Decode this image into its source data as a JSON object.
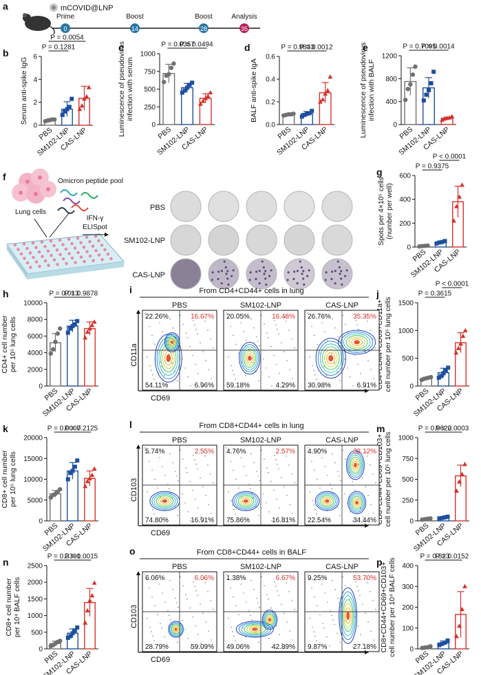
{
  "figure": {
    "colors": {
      "pbs": "#707070",
      "sm102": "#1d4ea0",
      "cas": "#d6302a",
      "axis": "#111111"
    },
    "panel_a": {
      "label": "a",
      "formulation": "mCOVID@LNP",
      "steps": [
        {
          "name": "Prime",
          "day": "0"
        },
        {
          "name": "Boost",
          "day": "14"
        },
        {
          "name": "Boost",
          "day": "28"
        },
        {
          "name": "Analysis",
          "day": "35"
        }
      ]
    },
    "panel_f": {
      "label": "f",
      "cells_label": "Lung cells",
      "pool_label": "Omicron peptide pool",
      "assay_line1": "IFN-γ",
      "assay_line2": "ELISpot",
      "rows": [
        "PBS",
        "SM102-LNP",
        "CAS-LNP"
      ]
    },
    "flow_i": {
      "label": "i",
      "title": "From CD4+CD44+ cells in lung",
      "groups": [
        "PBS",
        "SM102-LNP",
        "CAS-LNP"
      ],
      "quadrants": [
        [
          "22.26%",
          "16.67%",
          "54.11%",
          "6.96%"
        ],
        [
          "20.05%",
          "16.48%",
          "59.18%",
          "4.29%"
        ],
        [
          "26.76%",
          "35.35%",
          "30.98%",
          "6.91%"
        ]
      ],
      "ylabel": "CD11a",
      "xlabel": "CD69"
    },
    "flow_l": {
      "label": "l",
      "title": "From CD8+CD44+ cells in lung",
      "groups": [
        "PBS",
        "SM102-LNP",
        "CAS-LNP"
      ],
      "quadrants": [
        [
          "5.74%",
          "2.55%",
          "74.80%",
          "16.91%"
        ],
        [
          "4.76%",
          "2.57%",
          "75.86%",
          "16.81%"
        ],
        [
          "4.90%",
          "38.12%",
          "22.54%",
          "34.44%"
        ]
      ],
      "ylabel": "CD103",
      "xlabel": "CD69"
    },
    "flow_o": {
      "label": "o",
      "title": "From CD8+CD44+ cells in BALF",
      "groups": [
        "PBS",
        "SM102-LNP",
        "CAS-LNP"
      ],
      "quadrants": [
        [
          "6.06%",
          "6.06%",
          "28.79%",
          "59.09%"
        ],
        [
          "1.38%",
          "6.67%",
          "49.06%",
          "42.89%"
        ],
        [
          "9.25%",
          "53.70%",
          "9.87%",
          "27.18%"
        ]
      ],
      "ylabel": "CD103",
      "xlabel": "CD69"
    }
  },
  "chart_data": [
    {
      "panel": "b",
      "type": "bar",
      "ylabel": "Serum anti-spike IgG",
      "categories": [
        "PBS",
        "SM102-LNP",
        "CAS-LNP"
      ],
      "ylim": [
        0,
        6
      ],
      "ticks": [
        "0",
        "2",
        "4",
        "6"
      ],
      "values": [
        0.45,
        1.4,
        2.35
      ],
      "errors": [
        0.1,
        0.65,
        1.05
      ],
      "points": [
        [
          0.35,
          0.4,
          0.45,
          0.5,
          0.5
        ],
        [
          0.9,
          1.2,
          1.4,
          1.6,
          2.3
        ],
        [
          1.4,
          1.7,
          2.3,
          2.5,
          3.3
        ]
      ],
      "pvalues": [
        {
          "text": "P = 0.1281",
          "from": 0,
          "to": 1,
          "level": 0
        },
        {
          "text": "P = 0.0054",
          "from": 0,
          "to": 2,
          "level": 1
        }
      ]
    },
    {
      "panel": "c",
      "type": "bar",
      "ylabel": [
        "Luminescence of pseudovirus",
        "infection with serum"
      ],
      "categories": [
        "PBS",
        "SM102-LNP",
        "CAS-LNP"
      ],
      "ylim": [
        0,
        1000
      ],
      "ticks": [
        "0",
        "250",
        "500",
        "750",
        "1000"
      ],
      "values": [
        720,
        520,
        370
      ],
      "errors": [
        130,
        60,
        65
      ],
      "points": [
        [
          600,
          690,
          710,
          800,
          860
        ],
        [
          450,
          480,
          520,
          560,
          590
        ],
        [
          290,
          330,
          370,
          400,
          450
        ]
      ],
      "pvalues": [
        {
          "text": "P = 0.0357",
          "from": 0,
          "to": 1,
          "level": 0
        },
        {
          "text": "P = 0.0494",
          "from": 1,
          "to": 2,
          "level": 0
        }
      ]
    },
    {
      "panel": "d",
      "type": "bar",
      "ylabel": "BALF anti-spike IgA",
      "categories": [
        "PBS",
        "SM102-LNP",
        "CAS-LNP"
      ],
      "ylim": [
        0,
        0.6
      ],
      "ticks": [
        "0.0",
        "0.2",
        "0.4",
        "0.6"
      ],
      "values": [
        0.088,
        0.095,
        0.28
      ],
      "errors": [
        0.008,
        0.02,
        0.09
      ],
      "points": [
        [
          0.08,
          0.085,
          0.09,
          0.09,
          0.095
        ],
        [
          0.07,
          0.085,
          0.095,
          0.1,
          0.12
        ],
        [
          0.2,
          0.22,
          0.27,
          0.3,
          0.42
        ]
      ],
      "pvalues": [
        {
          "text": "P = 0.9833",
          "from": 0,
          "to": 1,
          "level": 0
        },
        {
          "text": "P = 0.0012",
          "from": 1,
          "to": 2,
          "level": 0
        }
      ]
    },
    {
      "panel": "e",
      "type": "bar",
      "ylabel": [
        "Luminescence of pseudovirus",
        "infection with BALF"
      ],
      "categories": [
        "PBS",
        "SM102-LNP",
        "CAS-LNP"
      ],
      "ylim": [
        0,
        1200
      ],
      "ticks": [
        "0",
        "400",
        "800",
        "1200"
      ],
      "values": [
        750,
        640,
        110
      ],
      "errors": [
        240,
        180,
        20
      ],
      "points": [
        [
          430,
          620,
          700,
          870,
          1010
        ],
        [
          420,
          520,
          600,
          720,
          920
        ],
        [
          80,
          100,
          110,
          120,
          140
        ]
      ],
      "pvalues": [
        {
          "text": "P = 0.7095",
          "from": 0,
          "to": 1,
          "level": 0
        },
        {
          "text": "P = 0.0014",
          "from": 1,
          "to": 2,
          "level": 0
        }
      ]
    },
    {
      "panel": "g",
      "type": "bar",
      "ylabel": [
        "Spots per 4×10⁵ cells",
        "(number per well)"
      ],
      "categories": [
        "PBS",
        "SM102-LNP",
        "CAS-LNP"
      ],
      "ylim": [
        0,
        600
      ],
      "ticks": [
        "0",
        "200",
        "400",
        "600"
      ],
      "values": [
        10,
        40,
        380
      ],
      "errors": [
        5,
        10,
        130
      ],
      "points": [
        [
          5,
          8,
          10,
          12
        ],
        [
          30,
          38,
          42,
          50
        ],
        [
          220,
          340,
          420,
          520
        ]
      ],
      "pvalues": [
        {
          "text": "P = 0.9375",
          "from": 0,
          "to": 1,
          "level": 0
        },
        {
          "text": "P < 0.0001",
          "from": 1,
          "to": 2,
          "level": 1
        }
      ]
    },
    {
      "panel": "h",
      "type": "bar",
      "ylabel": [
        "CD4+ cell number",
        "per 10⁵ lung cells"
      ],
      "categories": [
        "PBS",
        "SM102-LNP",
        "CAS-LNP"
      ],
      "ylim": [
        0,
        10000
      ],
      "ticks": [
        "0",
        "2000",
        "4000",
        "6000",
        "8000",
        "10000"
      ],
      "values": [
        5200,
        7200,
        6900
      ],
      "errors": [
        1100,
        700,
        800
      ],
      "points": [
        [
          3900,
          4400,
          5300,
          6300,
          6900
        ],
        [
          6400,
          6900,
          7200,
          7400,
          7800
        ],
        [
          5800,
          6500,
          6900,
          7300,
          7700
        ]
      ],
      "pvalues": [
        {
          "text": "P = 0.013",
          "from": 0,
          "to": 1,
          "level": 0
        },
        {
          "text": "P = 0.9878",
          "from": 1,
          "to": 2,
          "level": 0
        }
      ]
    },
    {
      "panel": "j",
      "type": "bar",
      "ylabel": [
        "CD4+CD44+CD69+CD11a+",
        "cell number per 10⁵ lung cells"
      ],
      "categories": [
        "PBS",
        "SM102-LNP",
        "CAS-LNP"
      ],
      "ylim": [
        0,
        1500
      ],
      "ticks": [
        "0",
        "500",
        "1000",
        "1500"
      ],
      "values": [
        140,
        240,
        780
      ],
      "errors": [
        20,
        80,
        180
      ],
      "points": [
        [
          110,
          130,
          140,
          150,
          160
        ],
        [
          150,
          180,
          230,
          280,
          330
        ],
        [
          600,
          680,
          760,
          900,
          1000
        ]
      ],
      "pvalues": [
        {
          "text": "P = 0.3615",
          "from": 0,
          "to": 1,
          "level": 0
        },
        {
          "text": "P < 0.0001",
          "from": 1,
          "to": 2,
          "level": 1
        }
      ]
    },
    {
      "panel": "k",
      "type": "bar",
      "ylabel": [
        "CD8+ cell number",
        "per 10⁵ lung cells"
      ],
      "categories": [
        "PBS",
        "SM102-LNP",
        "CAS-LNP"
      ],
      "ylim": [
        0,
        20000
      ],
      "ticks": [
        "0",
        "5000",
        "10000",
        "15000",
        "20000"
      ],
      "values": [
        6500,
        12000,
        10200
      ],
      "errors": [
        800,
        2000,
        1800
      ],
      "points": [
        [
          5600,
          6200,
          6500,
          7000,
          7600
        ],
        [
          10000,
          11500,
          12000,
          13000,
          14500
        ],
        [
          8300,
          9500,
          10200,
          11000,
          12500
        ]
      ],
      "pvalues": [
        {
          "text": "P = 0.0007",
          "from": 0,
          "to": 1,
          "level": 0
        },
        {
          "text": "P = 0.2125",
          "from": 1,
          "to": 2,
          "level": 0
        }
      ]
    },
    {
      "panel": "m",
      "type": "bar",
      "ylabel": [
        "CD8+CD44+CD69+CD103+",
        "cell number per 10⁵ lung cells"
      ],
      "categories": [
        "PBS",
        "SM102-LNP",
        "CAS-LNP"
      ],
      "ylim": [
        0,
        1000
      ],
      "ticks": [
        "0",
        "250",
        "500",
        "750",
        "1000"
      ],
      "values": [
        25,
        40,
        540
      ],
      "errors": [
        8,
        12,
        130
      ],
      "points": [
        [
          15,
          20,
          25,
          30
        ],
        [
          30,
          35,
          42,
          50
        ],
        [
          360,
          470,
          560,
          680
        ]
      ],
      "pvalues": [
        {
          "text": "P = 0.9622",
          "from": 0,
          "to": 1,
          "level": 0
        },
        {
          "text": "P = 0.0003",
          "from": 1,
          "to": 2,
          "level": 0
        }
      ]
    },
    {
      "panel": "n",
      "type": "bar",
      "ylabel": [
        "CD8+ cell number",
        "per 10⁴ BALF cells"
      ],
      "categories": [
        "PBS",
        "SM102-LNP",
        "CAS-LNP"
      ],
      "ylim": [
        0,
        2500
      ],
      "ticks": [
        "0",
        "500",
        "1000",
        "1500",
        "2000",
        "2500"
      ],
      "values": [
        160,
        470,
        1390
      ],
      "errors": [
        70,
        130,
        420
      ],
      "points": [
        [
          80,
          110,
          160,
          210,
          240
        ],
        [
          330,
          380,
          470,
          550,
          640
        ],
        [
          780,
          1150,
          1450,
          1600,
          1980
        ]
      ],
      "pvalues": [
        {
          "text": "P = 0.3391",
          "from": 0,
          "to": 1,
          "level": 0
        },
        {
          "text": "P = 0.0015",
          "from": 1,
          "to": 2,
          "level": 0
        }
      ]
    },
    {
      "panel": "p",
      "type": "bar",
      "ylabel": [
        "CD8+CD44+CD69+CD103+",
        "cell number per 10⁴ BALF cells"
      ],
      "categories": [
        "PBS",
        "SM102-LNP",
        "CAS-LNP"
      ],
      "ylim": [
        0,
        400
      ],
      "ticks": [
        "0",
        "100",
        "200",
        "300",
        "400"
      ],
      "values": [
        8,
        28,
        165
      ],
      "errors": [
        5,
        10,
        110
      ],
      "points": [
        [
          4,
          6,
          8,
          12
        ],
        [
          18,
          24,
          30,
          40
        ],
        [
          60,
          110,
          190,
          300
        ]
      ],
      "pvalues": [
        {
          "text": "P = 0.823",
          "from": 0,
          "to": 1,
          "level": 0
        },
        {
          "text": "P = 0.0152",
          "from": 1,
          "to": 2,
          "level": 0
        }
      ]
    }
  ]
}
